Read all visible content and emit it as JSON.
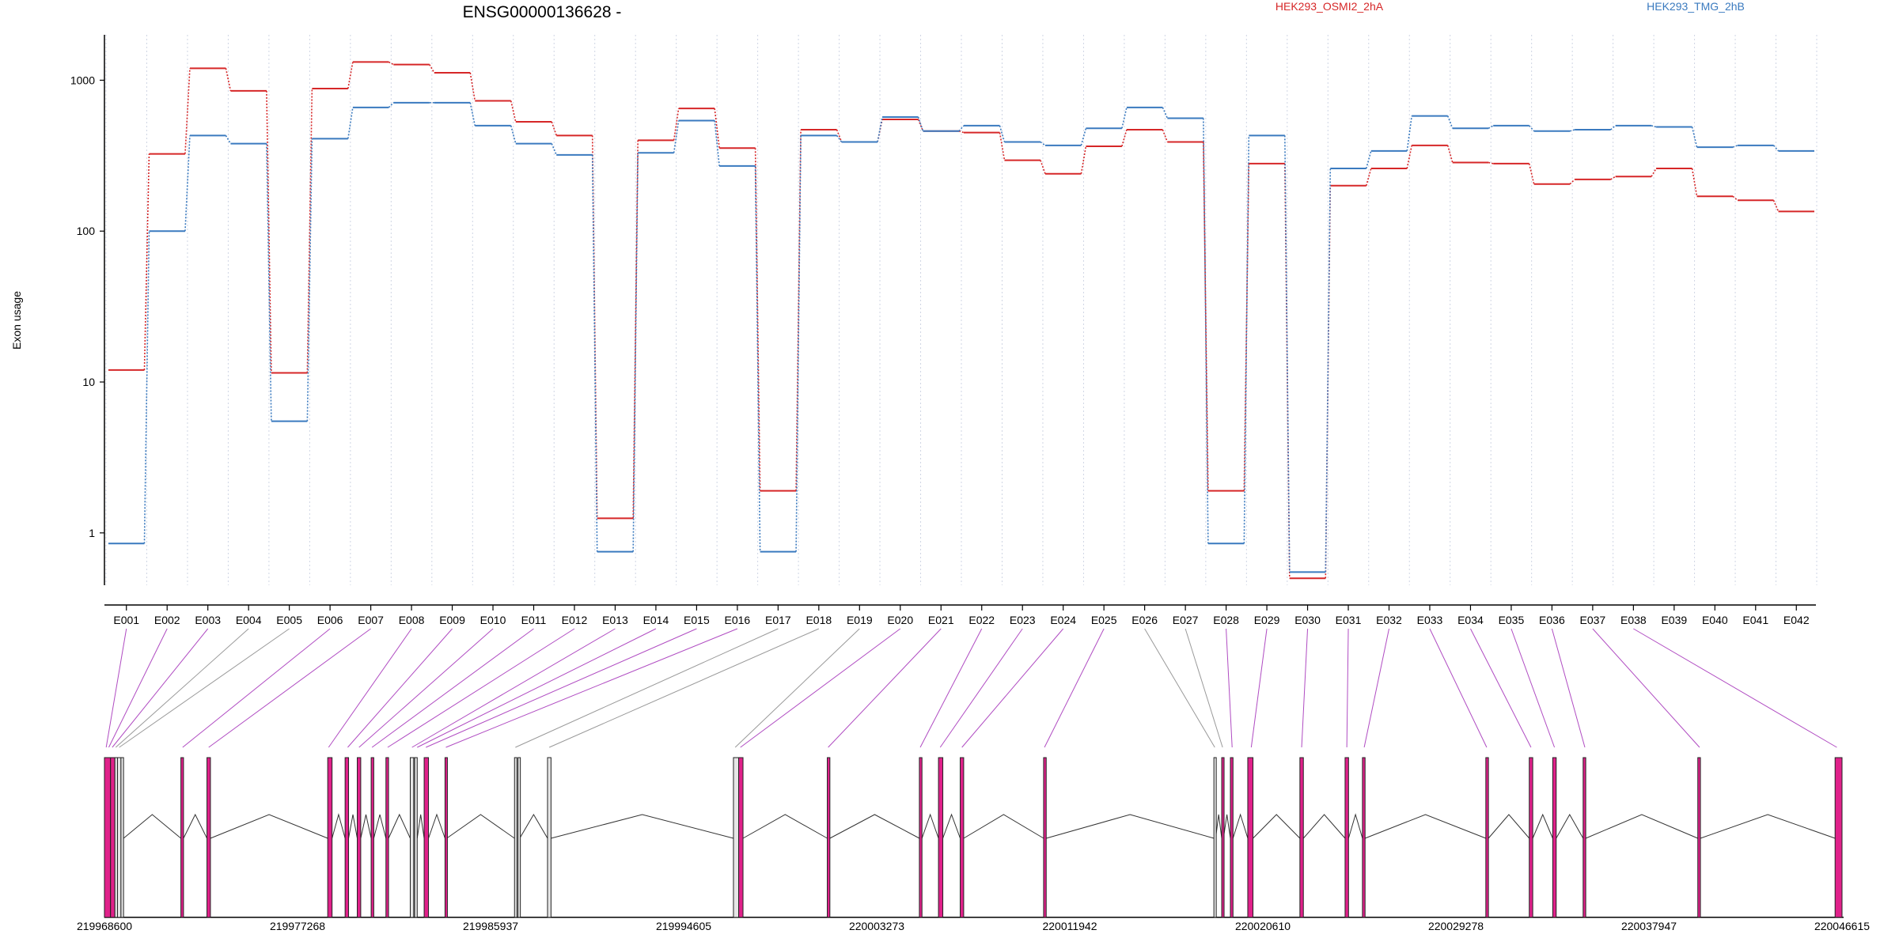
{
  "chart_data": {
    "type": "line",
    "title": "ENSG00000136628 -",
    "xlabel": "",
    "ylabel": "Exon usage",
    "y_scale": "log",
    "ylim": [
      0.45,
      2000
    ],
    "y_ticks": [
      1,
      10,
      100,
      1000
    ],
    "y_tick_labels": [
      "1",
      "10",
      "100",
      "1000"
    ],
    "categories": [
      "E001",
      "E002",
      "E003",
      "E004",
      "E005",
      "E006",
      "E007",
      "E008",
      "E009",
      "E010",
      "E011",
      "E012",
      "E013",
      "E014",
      "E015",
      "E016",
      "E017",
      "E018",
      "E019",
      "E020",
      "E021",
      "E022",
      "E023",
      "E024",
      "E025",
      "E026",
      "E027",
      "E028",
      "E029",
      "E030",
      "E031",
      "E032",
      "E033",
      "E034",
      "E035",
      "E036",
      "E037",
      "E038",
      "E039",
      "E040",
      "E041",
      "E042"
    ],
    "grid": "vertical dotted at exon boundaries",
    "legend": [
      "top-center",
      "top-right"
    ],
    "series": [
      {
        "name": "HEK293_OSMI2_2hA",
        "color": "#d62728",
        "values": [
          12,
          325,
          1200,
          850,
          11.5,
          880,
          1320,
          1270,
          1120,
          730,
          530,
          430,
          1.25,
          400,
          650,
          355,
          1.9,
          470,
          390,
          550,
          460,
          450,
          295,
          240,
          365,
          470,
          390,
          1.9,
          280,
          0.5,
          200,
          260,
          370,
          285,
          280,
          205,
          220,
          230,
          260,
          170,
          160,
          135
        ]
      },
      {
        "name": "HEK293_TMG_2hB",
        "color": "#3a7abf",
        "values": [
          0.85,
          100,
          430,
          380,
          5.5,
          410,
          660,
          710,
          710,
          500,
          380,
          320,
          0.75,
          330,
          540,
          270,
          0.75,
          430,
          390,
          570,
          460,
          500,
          390,
          370,
          480,
          660,
          560,
          0.85,
          430,
          0.55,
          260,
          340,
          580,
          480,
          500,
          460,
          470,
          500,
          490,
          360,
          370,
          340
        ]
      }
    ],
    "gene_model": {
      "coordinate_ticks": [
        "219968600",
        "219977268",
        "219985937",
        "219994605",
        "220003273",
        "220011942",
        "220020610",
        "220029278",
        "220037947",
        "220046615"
      ],
      "highlight_color": "#e0218a",
      "exons": [
        {
          "s": 0,
          "e": 0.35,
          "hl": true
        },
        {
          "s": 0.35,
          "e": 0.6,
          "hl": true
        },
        {
          "s": 0.6,
          "e": 0.75,
          "hl": false
        },
        {
          "s": 0.75,
          "e": 0.95,
          "hl": false
        },
        {
          "s": 0.95,
          "e": 1.1,
          "hl": false
        },
        {
          "s": 4.4,
          "e": 4.55,
          "hl": true
        },
        {
          "s": 5.9,
          "e": 6.1,
          "hl": true
        },
        {
          "s": 12.85,
          "e": 13.1,
          "hl": true
        },
        {
          "s": 13.85,
          "e": 14.05,
          "hl": true
        },
        {
          "s": 14.55,
          "e": 14.75,
          "hl": true
        },
        {
          "s": 15.35,
          "e": 15.5,
          "hl": true
        },
        {
          "s": 16.2,
          "e": 16.35,
          "hl": true
        },
        {
          "s": 17.6,
          "e": 17.8,
          "hl": false
        },
        {
          "s": 17.85,
          "e": 18.0,
          "hl": false
        },
        {
          "s": 18.4,
          "e": 18.65,
          "hl": true
        },
        {
          "s": 19.6,
          "e": 19.7,
          "hl": true
        },
        {
          "s": 23.6,
          "e": 23.7,
          "hl": false
        },
        {
          "s": 23.8,
          "e": 23.9,
          "hl": false
        },
        {
          "s": 25.5,
          "e": 25.7,
          "hl": false
        },
        {
          "s": 36.2,
          "e": 36.5,
          "hl": false
        },
        {
          "s": 36.5,
          "e": 36.75,
          "hl": true
        },
        {
          "s": 41.6,
          "e": 41.75,
          "hl": true
        },
        {
          "s": 46.9,
          "e": 47.05,
          "hl": true
        },
        {
          "s": 48.0,
          "e": 48.25,
          "hl": true
        },
        {
          "s": 49.25,
          "e": 49.45,
          "hl": true
        },
        {
          "s": 54.05,
          "e": 54.2,
          "hl": true
        },
        {
          "s": 63.85,
          "e": 63.95,
          "hl": false
        },
        {
          "s": 64.3,
          "e": 64.4,
          "hl": true
        },
        {
          "s": 64.8,
          "e": 64.95,
          "hl": true
        },
        {
          "s": 65.8,
          "e": 66.1,
          "hl": true
        },
        {
          "s": 68.8,
          "e": 69.0,
          "hl": true
        },
        {
          "s": 71.4,
          "e": 71.6,
          "hl": true
        },
        {
          "s": 72.4,
          "e": 72.55,
          "hl": true
        },
        {
          "s": 79.5,
          "e": 79.65,
          "hl": true
        },
        {
          "s": 82.0,
          "e": 82.2,
          "hl": true
        },
        {
          "s": 83.35,
          "e": 83.55,
          "hl": true
        },
        {
          "s": 85.1,
          "e": 85.25,
          "hl": true
        },
        {
          "s": 91.7,
          "e": 91.85,
          "hl": true
        },
        {
          "s": 99.6,
          "e": 100,
          "hl": true
        }
      ],
      "links": [
        {
          "ex": 0,
          "g": 0.1,
          "hl": true
        },
        {
          "ex": 1,
          "g": 0.25,
          "hl": true
        },
        {
          "ex": 2,
          "g": 0.45,
          "hl": true
        },
        {
          "ex": 3,
          "g": 0.65,
          "hl": false
        },
        {
          "ex": 4,
          "g": 0.85,
          "hl": false
        },
        {
          "ex": 5,
          "g": 4.5,
          "hl": true
        },
        {
          "ex": 6,
          "g": 6.0,
          "hl": true
        },
        {
          "ex": 7,
          "g": 12.9,
          "hl": true
        },
        {
          "ex": 8,
          "g": 14.0,
          "hl": true
        },
        {
          "ex": 9,
          "g": 14.65,
          "hl": true
        },
        {
          "ex": 10,
          "g": 15.4,
          "hl": true
        },
        {
          "ex": 11,
          "g": 16.3,
          "hl": true
        },
        {
          "ex": 12,
          "g": 17.7,
          "hl": true
        },
        {
          "ex": 13,
          "g": 18.0,
          "hl": true
        },
        {
          "ex": 14,
          "g": 18.5,
          "hl": true
        },
        {
          "ex": 15,
          "g": 19.65,
          "hl": true
        },
        {
          "ex": 16,
          "g": 23.65,
          "hl": false
        },
        {
          "ex": 17,
          "g": 25.6,
          "hl": false
        },
        {
          "ex": 18,
          "g": 36.3,
          "hl": false
        },
        {
          "ex": 19,
          "g": 36.6,
          "hl": true
        },
        {
          "ex": 20,
          "g": 41.65,
          "hl": true
        },
        {
          "ex": 21,
          "g": 46.95,
          "hl": true
        },
        {
          "ex": 22,
          "g": 48.1,
          "hl": true
        },
        {
          "ex": 23,
          "g": 49.35,
          "hl": true
        },
        {
          "ex": 24,
          "g": 54.1,
          "hl": true
        },
        {
          "ex": 25,
          "g": 63.9,
          "hl": false
        },
        {
          "ex": 26,
          "g": 64.35,
          "hl": false
        },
        {
          "ex": 27,
          "g": 64.9,
          "hl": true
        },
        {
          "ex": 28,
          "g": 66.0,
          "hl": true
        },
        {
          "ex": 29,
          "g": 68.9,
          "hl": true
        },
        {
          "ex": 30,
          "g": 71.5,
          "hl": true
        },
        {
          "ex": 31,
          "g": 72.5,
          "hl": true
        },
        {
          "ex": 32,
          "g": 79.55,
          "hl": true
        },
        {
          "ex": 33,
          "g": 82.1,
          "hl": true
        },
        {
          "ex": 34,
          "g": 83.45,
          "hl": true
        },
        {
          "ex": 35,
          "g": 85.2,
          "hl": true
        },
        {
          "ex": 36,
          "g": 91.8,
          "hl": true
        },
        {
          "ex": 37,
          "g": 99.7,
          "hl": true
        }
      ]
    }
  }
}
